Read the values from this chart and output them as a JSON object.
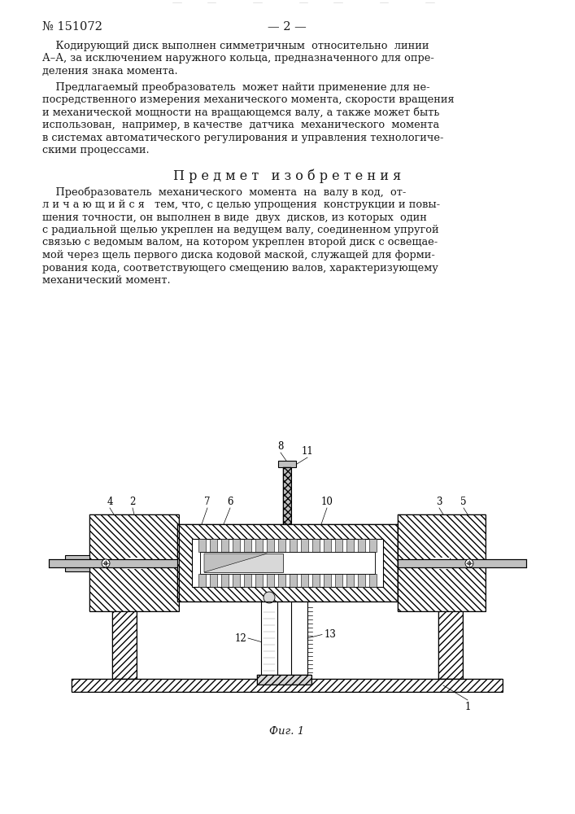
{
  "page_number": "№ 151072",
  "page_num_right": "— 2 —",
  "background_color": "#ffffff",
  "text_color": "#1a1a1a",
  "para1_lines": [
    "    Кодирующий диск выполнен симметричным  относительно  линии",
    "А–А, за исключением наружного кольца, предназначенного для опре-",
    "деления знака момента."
  ],
  "para2_lines": [
    "    Предлагаемый преобразователь  может найти применение для не-",
    "посредственного измерения механического момента, скорости вращения",
    "и механической мощности на вращающемся валу, а также может быть",
    "использован,  например, в качестве  датчика  механического  момента",
    "в системах автоматического регулирования и управления технологиче-",
    "скими процессами."
  ],
  "section_title": "П р е д м е т   и з о б р е т е н и я",
  "para3_lines": [
    "    Преобразователь  механического  момента  на  валу в код,  от-",
    "л и ч а ю щ и й с я   тем, что, с целью упрощения  конструкции и повы-",
    "шения точности, он выполнен в виде  двух  дисков, из которых  один",
    "с радиальной щелью укреплен на ведущем валу, соединенном упругой",
    "связью с ведомым валом, на котором укреплен второй диск с освещае-",
    "мой через щель первого диска кодовой маской, служащей для форми-",
    "рования кода, соответствующего смещению валов, характеризующему",
    "механический момент."
  ],
  "fig_caption": "Фиг. 1",
  "lw": 0.8,
  "hatch_scale": 2.0
}
